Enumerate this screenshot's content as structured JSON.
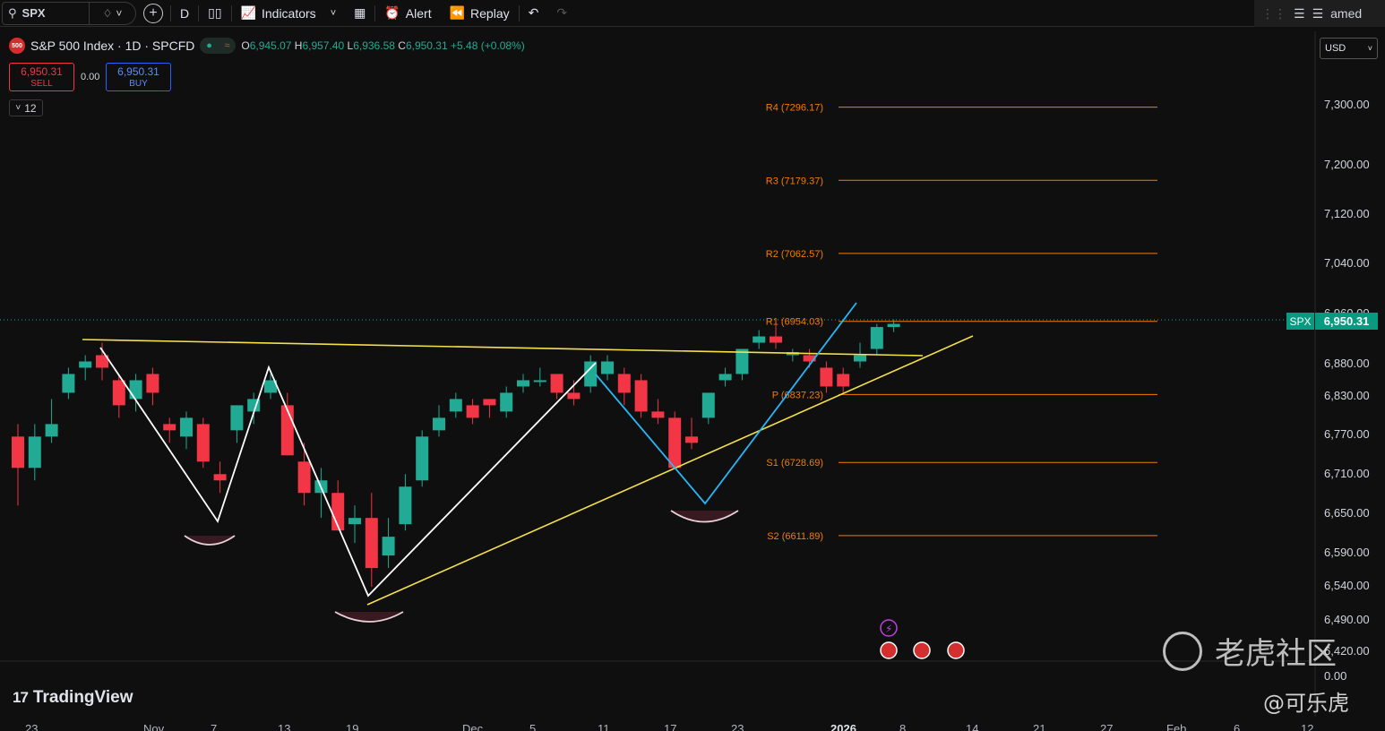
{
  "toolbar": {
    "symbol": "SPX",
    "interval": "D",
    "indicators_label": "Indicators",
    "alert_label": "Alert",
    "replay_label": "Replay",
    "layout_name": "amed"
  },
  "legend": {
    "title": "S&P 500 Index · 1D · SPCFD",
    "logo_text": "500",
    "open_label": "O",
    "open": "6,945.07",
    "high_label": "H",
    "high": "6,957.40",
    "low_label": "L",
    "low": "6,936.58",
    "close_label": "C",
    "close": "6,950.31",
    "change": "+5.48 (+0.08%)",
    "sell_price": "6,950.31",
    "sell_label": "SELL",
    "buy_price": "6,950.31",
    "buy_label": "BUY",
    "spread": "0.00",
    "indicator_count": "12"
  },
  "price_axis": {
    "currency": "USD",
    "labels": [
      "7,300.00",
      "7,200.00",
      "7,120.00",
      "7,040.00",
      "6,960.00",
      "6,880.00",
      "6,830.00",
      "6,770.00",
      "6,710.00",
      "6,650.00",
      "6,590.00",
      "6,540.00",
      "6,490.00",
      "6,420.00",
      "0.00"
    ],
    "current_symbol": "SPX",
    "current_price": "6,950.31"
  },
  "time_axis": [
    "23",
    "Nov",
    "7",
    "13",
    "19",
    "Dec",
    "5",
    "11",
    "17",
    "23",
    "2026",
    "8",
    "14",
    "21",
    "27",
    "Feb",
    "6",
    "12"
  ],
  "pivots": [
    {
      "label": "R4 (7296.17)",
      "value": 7296.17
    },
    {
      "label": "R3 (7179.37)",
      "value": 7179.37
    },
    {
      "label": "R2 (7062.57)",
      "value": 7062.57
    },
    {
      "label": "R1 (6954.03)",
      "value": 6954.03
    },
    {
      "label": "P (6837.23)",
      "value": 6837.23
    },
    {
      "label": "S1 (6728.69)",
      "value": 6728.69
    },
    {
      "label": "S2 (6611.89)",
      "value": 6611.89
    }
  ],
  "branding": {
    "tradingview": "TradingView",
    "watermark": "老虎社区",
    "handle": "@可乐虎"
  },
  "colors": {
    "up": "#22ab94",
    "down": "#f23645",
    "pivot": "#f57c00",
    "trendline": "#f5e04a",
    "pattern_white": "#ffffff",
    "pattern_cyan": "#29b6f6"
  },
  "candles": [
    [
      6770,
      6790,
      6660,
      6720
    ],
    [
      6720,
      6790,
      6700,
      6770
    ],
    [
      6770,
      6830,
      6760,
      6790
    ],
    [
      6840,
      6880,
      6830,
      6870
    ],
    [
      6880,
      6900,
      6860,
      6890
    ],
    [
      6900,
      6920,
      6860,
      6880
    ],
    [
      6860,
      6870,
      6800,
      6820
    ],
    [
      6830,
      6870,
      6810,
      6860
    ],
    [
      6870,
      6880,
      6820,
      6840
    ],
    [
      6790,
      6800,
      6760,
      6780
    ],
    [
      6770,
      6810,
      6750,
      6800
    ],
    [
      6790,
      6800,
      6720,
      6730
    ],
    [
      6710,
      6730,
      6680,
      6700
    ],
    [
      6780,
      6820,
      6760,
      6820
    ],
    [
      6810,
      6840,
      6790,
      6830
    ],
    [
      6840,
      6870,
      6830,
      6860
    ],
    [
      6820,
      6840,
      6740,
      6740
    ],
    [
      6730,
      6760,
      6660,
      6680
    ],
    [
      6680,
      6720,
      6640,
      6700
    ],
    [
      6680,
      6700,
      6620,
      6620
    ],
    [
      6630,
      6660,
      6600,
      6640
    ],
    [
      6640,
      6680,
      6530,
      6560
    ],
    [
      6580,
      6640,
      6560,
      6610
    ],
    [
      6630,
      6710,
      6620,
      6690
    ],
    [
      6700,
      6780,
      6690,
      6770
    ],
    [
      6780,
      6820,
      6770,
      6800
    ],
    [
      6810,
      6840,
      6800,
      6830
    ],
    [
      6820,
      6830,
      6790,
      6800
    ],
    [
      6830,
      6830,
      6800,
      6820
    ],
    [
      6810,
      6850,
      6800,
      6840
    ],
    [
      6850,
      6870,
      6840,
      6860
    ],
    [
      6860,
      6880,
      6850,
      6860
    ],
    [
      6870,
      6870,
      6830,
      6840
    ],
    [
      6840,
      6860,
      6820,
      6830
    ],
    [
      6850,
      6900,
      6840,
      6890
    ],
    [
      6870,
      6900,
      6860,
      6890
    ],
    [
      6870,
      6880,
      6820,
      6840
    ],
    [
      6860,
      6870,
      6800,
      6810
    ],
    [
      6810,
      6830,
      6790,
      6800
    ],
    [
      6800,
      6810,
      6720,
      6720
    ],
    [
      6770,
      6800,
      6750,
      6760
    ],
    [
      6800,
      6840,
      6790,
      6840
    ],
    [
      6860,
      6880,
      6850,
      6870
    ],
    [
      6870,
      6910,
      6860,
      6910
    ],
    [
      6920,
      6940,
      6910,
      6930
    ],
    [
      6930,
      6950,
      6910,
      6920
    ],
    [
      6900,
      6910,
      6890,
      6905
    ],
    [
      6900,
      6910,
      6880,
      6890
    ],
    [
      6880,
      6890,
      6840,
      6850
    ],
    [
      6870,
      6880,
      6840,
      6850
    ],
    [
      6890,
      6920,
      6880,
      6900
    ],
    [
      6910,
      6950,
      6900,
      6945
    ],
    [
      6945,
      6957,
      6937,
      6950
    ]
  ]
}
